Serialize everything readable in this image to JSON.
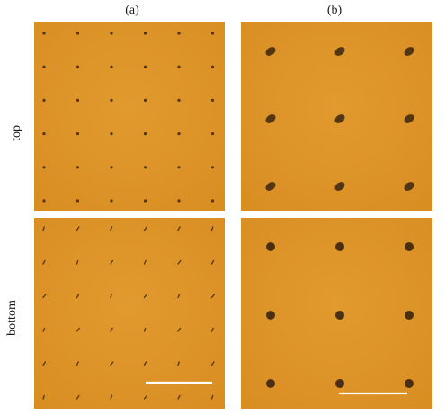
{
  "figure": {
    "column_labels": [
      "(a)",
      "(b)"
    ],
    "row_labels": [
      "top",
      "bottom"
    ]
  },
  "colors": {
    "film_orange": "#d98e22",
    "film_orange_light": "#e19a2e",
    "dot_dark": "#3a2410",
    "scale_bar": "#ffffff",
    "label_text": "#1a1a1a"
  },
  "panels": {
    "a_top": {
      "grid_rows": 6,
      "grid_cols": 6,
      "dot_style": "fine-point"
    },
    "a_bottom": {
      "grid_rows": 6,
      "grid_cols": 6,
      "dot_style": "fine-streak",
      "scale_bar": true
    },
    "b_top": {
      "grid_rows": 3,
      "grid_cols": 3,
      "dot_style": "elongated-blob"
    },
    "b_bottom": {
      "grid_rows": 3,
      "grid_cols": 3,
      "dot_style": "round-blob",
      "scale_bar": true
    }
  }
}
